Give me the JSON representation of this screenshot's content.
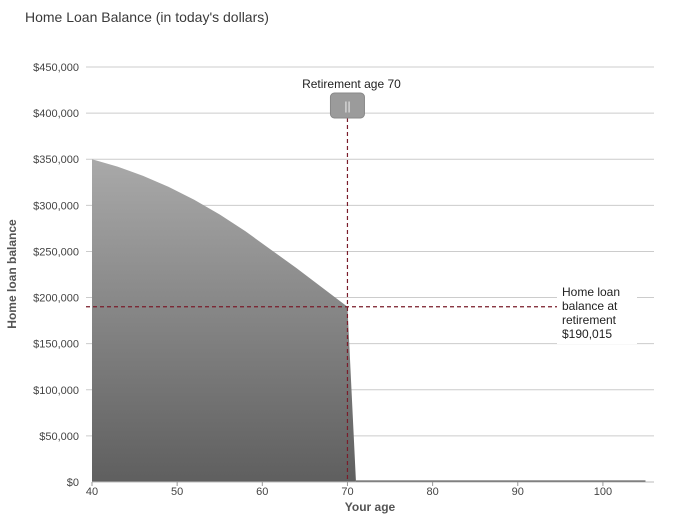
{
  "page": {
    "title": "Home Loan Balance (in today's dollars)"
  },
  "colors": {
    "area_top": "#a9a9a9",
    "area_bottom": "#5f5f5f",
    "grid": "#cccccc",
    "marker_line": "#7a1c2a",
    "handle": "#9b9b9b"
  },
  "chart_data": {
    "type": "area",
    "title": "Home Loan Balance (in today's dollars)",
    "xlabel": "Your age",
    "ylabel": "Home loan balance",
    "xlim": [
      40,
      106
    ],
    "ylim": [
      0,
      450000
    ],
    "grid": true,
    "x_ticks": [
      40,
      50,
      60,
      70,
      80,
      90,
      100
    ],
    "x_tick_labels": [
      "40",
      "50",
      "60",
      "70",
      "80",
      "90",
      "100"
    ],
    "y_ticks": [
      0,
      50000,
      100000,
      150000,
      200000,
      250000,
      300000,
      350000,
      400000,
      450000
    ],
    "y_tick_labels": [
      "$0",
      "$50,000",
      "$100,000",
      "$150,000",
      "$200,000",
      "$250,000",
      "$300,000",
      "$350,000",
      "$400,000",
      "$450,000"
    ],
    "series": [
      {
        "x": [
          40,
          43,
          46,
          49,
          52,
          55,
          58,
          61,
          64,
          67,
          70,
          71,
          80,
          90,
          100,
          105
        ],
        "values": [
          350000,
          342000,
          332000,
          320000,
          306000,
          290000,
          272000,
          252000,
          232000,
          211000,
          190015,
          0,
          0,
          0,
          0,
          0
        ]
      }
    ],
    "retirement_marker": {
      "label": "Retirement age 70",
      "age": 70,
      "balance": 190015,
      "handle_icon": "||"
    },
    "callout": {
      "lines": [
        "Home loan",
        "balance at",
        "retirement",
        "$190,015"
      ]
    }
  }
}
